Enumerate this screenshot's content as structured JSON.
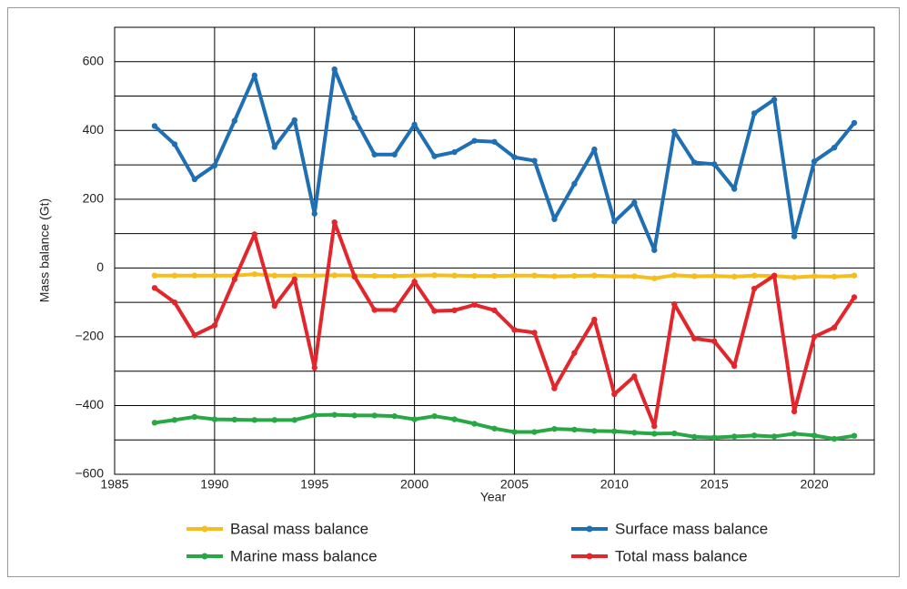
{
  "chart_data": {
    "type": "line",
    "x_label": "Year",
    "y_label": "Mass balance (Gt)",
    "x": [
      1987,
      1988,
      1989,
      1990,
      1991,
      1992,
      1993,
      1994,
      1995,
      1996,
      1997,
      1998,
      1999,
      2000,
      2001,
      2002,
      2003,
      2004,
      2005,
      2006,
      2007,
      2008,
      2009,
      2010,
      2011,
      2012,
      2013,
      2014,
      2015,
      2016,
      2017,
      2018,
      2019,
      2020,
      2021,
      2022
    ],
    "series": [
      {
        "name": "Basal mass balance",
        "color": "#f5be1e",
        "values": [
          -22,
          -22,
          -22,
          -22,
          -22,
          -18,
          -22,
          -22,
          -22,
          -21,
          -22,
          -23,
          -23,
          -22,
          -21,
          -22,
          -23,
          -23,
          -22,
          -22,
          -24,
          -23,
          -22,
          -24,
          -24,
          -30,
          -21,
          -24,
          -23,
          -25,
          -22,
          -23,
          -27,
          -24,
          -25,
          -22
        ]
      },
      {
        "name": "Surface mass balance",
        "color": "#1f6fb4",
        "values": [
          413,
          360,
          258,
          298,
          428,
          560,
          352,
          430,
          158,
          578,
          437,
          330,
          330,
          417,
          325,
          337,
          370,
          367,
          322,
          312,
          142,
          245,
          345,
          135,
          190,
          52,
          397,
          307,
          302,
          230,
          450,
          490,
          92,
          310,
          350,
          422
        ]
      },
      {
        "name": "Marine mass balance",
        "color": "#27a845",
        "values": [
          -450,
          -442,
          -433,
          -440,
          -441,
          -442,
          -442,
          -442,
          -428,
          -427,
          -429,
          -429,
          -431,
          -440,
          -431,
          -440,
          -453,
          -467,
          -477,
          -477,
          -468,
          -470,
          -474,
          -475,
          -479,
          -482,
          -481,
          -491,
          -493,
          -490,
          -487,
          -490,
          -482,
          -487,
          -497,
          -488
        ]
      },
      {
        "name": "Total mass balance",
        "color": "#e3262b",
        "values": [
          -58,
          -100,
          -195,
          -167,
          -33,
          98,
          -110,
          -33,
          -290,
          133,
          -25,
          -122,
          -122,
          -40,
          -125,
          -123,
          -107,
          -123,
          -180,
          -188,
          -350,
          -247,
          -150,
          -367,
          -315,
          -460,
          -105,
          -205,
          -213,
          -285,
          -60,
          -22,
          -417,
          -200,
          -173,
          -85
        ]
      }
    ],
    "xlim": [
      1985,
      2023
    ],
    "xticks": [
      1985,
      1990,
      1995,
      2000,
      2005,
      2010,
      2015,
      2020
    ],
    "ylim": [
      -600,
      700
    ],
    "yticks": [
      {
        "value": -600,
        "label": "−600"
      },
      {
        "value": -400,
        "label": "−400"
      },
      {
        "value": -200,
        "label": "−200"
      },
      0,
      200,
      400,
      600
    ],
    "yminor": [
      -500,
      -300,
      -100,
      100,
      300,
      500
    ],
    "grid": true
  }
}
